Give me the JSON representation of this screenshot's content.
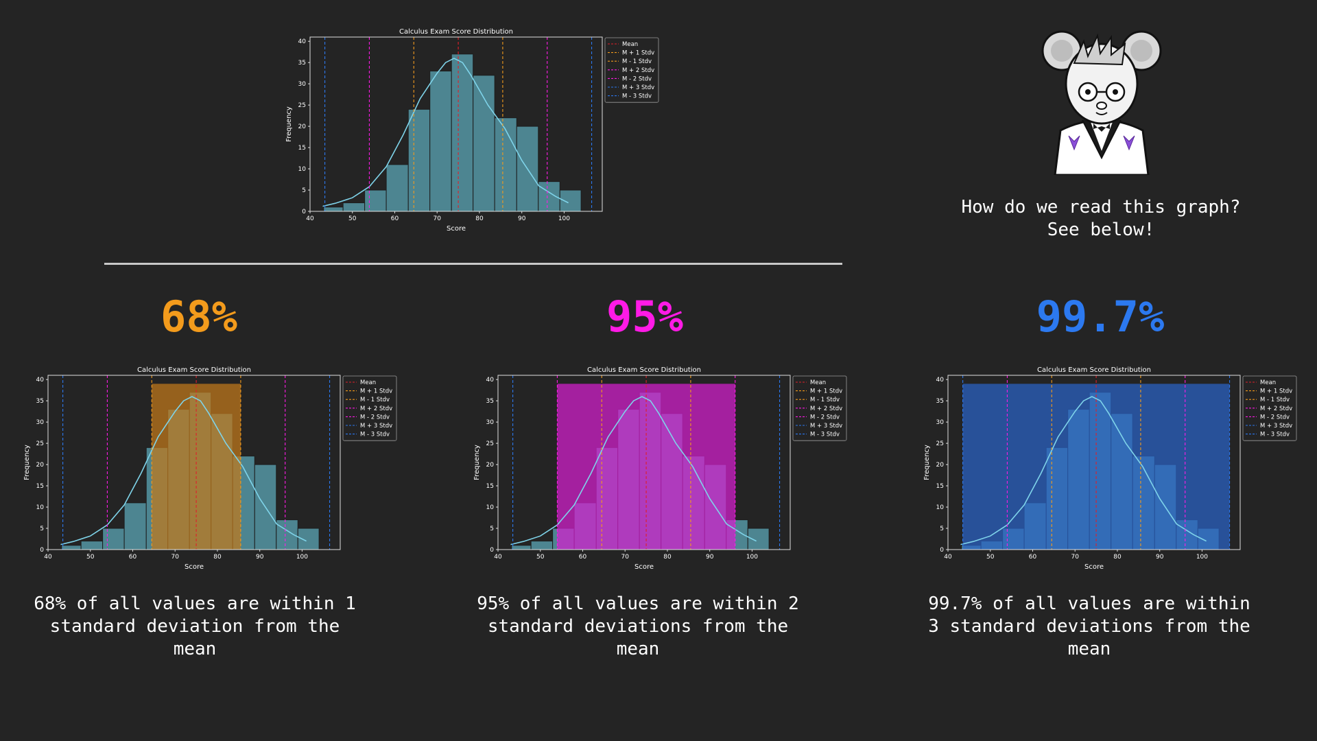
{
  "colors": {
    "background": "#242424",
    "bar_fill": "#4d8591",
    "kde_line": "#7fd4ea",
    "mean": "#e0202a",
    "sd1": "#f39b1c",
    "sd2": "#ff1ae6",
    "sd3": "#2c79f0",
    "band1": "#c2781a",
    "band2": "#d61ecf",
    "band3": "#2a62c6"
  },
  "chart_data": [
    {
      "id": "main",
      "type": "bar",
      "title": "Calculus Exam Score Distribution",
      "xlabel": "Score",
      "ylabel": "Frequency",
      "xlim": [
        40,
        109
      ],
      "ylim": [
        0,
        41
      ],
      "xticks": [
        40,
        50,
        60,
        70,
        80,
        90,
        100
      ],
      "yticks": [
        0,
        5,
        10,
        15,
        20,
        25,
        30,
        35,
        40
      ],
      "bin_edges": [
        43.2,
        47.8,
        52.9,
        58.0,
        63.2,
        68.3,
        73.4,
        78.5,
        83.6,
        88.8,
        93.9,
        99.0,
        104.0
      ],
      "values": [
        1,
        2,
        5,
        11,
        24,
        33,
        37,
        32,
        22,
        20,
        7,
        5
      ],
      "kde": {
        "x": [
          43,
          46,
          50,
          54,
          58,
          62,
          66,
          70,
          72,
          74,
          76,
          78,
          82,
          86,
          90,
          94,
          98,
          101
        ],
        "y": [
          1.2,
          1.9,
          3.2,
          5.8,
          10.5,
          18,
          26.5,
          32.5,
          35,
          36,
          35,
          32,
          25,
          19.5,
          12,
          6,
          3.5,
          2
        ]
      },
      "mean": 75,
      "stdev": 10.5,
      "lines": [
        75,
        85.5,
        64.5,
        96,
        54,
        106.5,
        43.5
      ],
      "legend": [
        "Mean",
        "M + 1 Stdv",
        "M - 1 Stdv",
        "M + 2 Stdv",
        "M - 2 Stdv",
        "M + 3 Stdv",
        "M - 3 Stdv"
      ],
      "legend_position": "outside-right",
      "highlight": 0
    },
    {
      "id": "one-sd",
      "type": "bar",
      "title": "Calculus Exam Score Distribution",
      "xlabel": "Score",
      "ylabel": "Frequency",
      "xlim": [
        40,
        109
      ],
      "ylim": [
        0,
        41
      ],
      "xticks": [
        40,
        50,
        60,
        70,
        80,
        90,
        100
      ],
      "yticks": [
        0,
        5,
        10,
        15,
        20,
        25,
        30,
        35,
        40
      ],
      "bin_edges": [
        43.2,
        47.8,
        52.9,
        58.0,
        63.2,
        68.3,
        73.4,
        78.5,
        83.6,
        88.8,
        93.9,
        99.0,
        104.0
      ],
      "values": [
        1,
        2,
        5,
        11,
        24,
        33,
        37,
        32,
        22,
        20,
        7,
        5
      ],
      "kde": {
        "x": [
          43,
          46,
          50,
          54,
          58,
          62,
          66,
          70,
          72,
          74,
          76,
          78,
          82,
          86,
          90,
          94,
          98,
          101
        ],
        "y": [
          1.2,
          1.9,
          3.2,
          5.8,
          10.5,
          18,
          26.5,
          32.5,
          35,
          36,
          35,
          32,
          25,
          19.5,
          12,
          6,
          3.5,
          2
        ]
      },
      "mean": 75,
      "stdev": 10.5,
      "lines": [
        75,
        85.5,
        64.5,
        96,
        54,
        106.5,
        43.5
      ],
      "legend": [
        "Mean",
        "M + 1 Stdv",
        "M - 1 Stdv",
        "M + 2 Stdv",
        "M - 2 Stdv",
        "M + 3 Stdv",
        "M - 3 Stdv"
      ],
      "legend_position": "outside-right",
      "highlight": 1
    },
    {
      "id": "two-sd",
      "type": "bar",
      "title": "Calculus Exam Score Distribution",
      "xlabel": "Score",
      "ylabel": "Frequency",
      "xlim": [
        40,
        109
      ],
      "ylim": [
        0,
        41
      ],
      "xticks": [
        40,
        50,
        60,
        70,
        80,
        90,
        100
      ],
      "yticks": [
        0,
        5,
        10,
        15,
        20,
        25,
        30,
        35,
        40
      ],
      "bin_edges": [
        43.2,
        47.8,
        52.9,
        58.0,
        63.2,
        68.3,
        73.4,
        78.5,
        83.6,
        88.8,
        93.9,
        99.0,
        104.0
      ],
      "values": [
        1,
        2,
        5,
        11,
        24,
        33,
        37,
        32,
        22,
        20,
        7,
        5
      ],
      "kde": {
        "x": [
          43,
          46,
          50,
          54,
          58,
          62,
          66,
          70,
          72,
          74,
          76,
          78,
          82,
          86,
          90,
          94,
          98,
          101
        ],
        "y": [
          1.2,
          1.9,
          3.2,
          5.8,
          10.5,
          18,
          26.5,
          32.5,
          35,
          36,
          35,
          32,
          25,
          19.5,
          12,
          6,
          3.5,
          2
        ]
      },
      "mean": 75,
      "stdev": 10.5,
      "lines": [
        75,
        85.5,
        64.5,
        96,
        54,
        106.5,
        43.5
      ],
      "legend": [
        "Mean",
        "M + 1 Stdv",
        "M - 1 Stdv",
        "M + 2 Stdv",
        "M - 2 Stdv",
        "M + 3 Stdv",
        "M - 3 Stdv"
      ],
      "legend_position": "outside-right",
      "highlight": 2
    },
    {
      "id": "three-sd",
      "type": "bar",
      "title": "Calculus Exam Score Distribution",
      "xlabel": "Score",
      "ylabel": "Frequency",
      "xlim": [
        40,
        109
      ],
      "ylim": [
        0,
        41
      ],
      "xticks": [
        40,
        50,
        60,
        70,
        80,
        90,
        100
      ],
      "yticks": [
        0,
        5,
        10,
        15,
        20,
        25,
        30,
        35,
        40
      ],
      "bin_edges": [
        43.2,
        47.8,
        52.9,
        58.0,
        63.2,
        68.3,
        73.4,
        78.5,
        83.6,
        88.8,
        93.9,
        99.0,
        104.0
      ],
      "values": [
        1,
        2,
        5,
        11,
        24,
        33,
        37,
        32,
        22,
        20,
        7,
        5
      ],
      "kde": {
        "x": [
          43,
          46,
          50,
          54,
          58,
          62,
          66,
          70,
          72,
          74,
          76,
          78,
          82,
          86,
          90,
          94,
          98,
          101
        ],
        "y": [
          1.2,
          1.9,
          3.2,
          5.8,
          10.5,
          18,
          26.5,
          32.5,
          35,
          36,
          35,
          32,
          25,
          19.5,
          12,
          6,
          3.5,
          2
        ]
      },
      "mean": 75,
      "stdev": 10.5,
      "lines": [
        75,
        85.5,
        64.5,
        96,
        54,
        106.5,
        43.5
      ],
      "legend": [
        "Mean",
        "M + 1 Stdv",
        "M - 1 Stdv",
        "M + 2 Stdv",
        "M - 2 Stdv",
        "M + 3 Stdv",
        "M - 3 Stdv"
      ],
      "legend_position": "outside-right",
      "highlight": 3
    }
  ],
  "question": {
    "line1": "How do we read this graph?",
    "line2": "See below!"
  },
  "rules": [
    {
      "percent": "68%",
      "line1": "68% of all values are within 1",
      "line2": "standard deviation from the",
      "line3": "mean"
    },
    {
      "percent": "95%",
      "line1": "95% of all values are within 2",
      "line2": "standard deviations from the",
      "line3": "mean"
    },
    {
      "percent": "99.7%",
      "line1": "99.7% of all values are within",
      "line2": "3 standard deviations from the",
      "line3": "mean"
    }
  ]
}
